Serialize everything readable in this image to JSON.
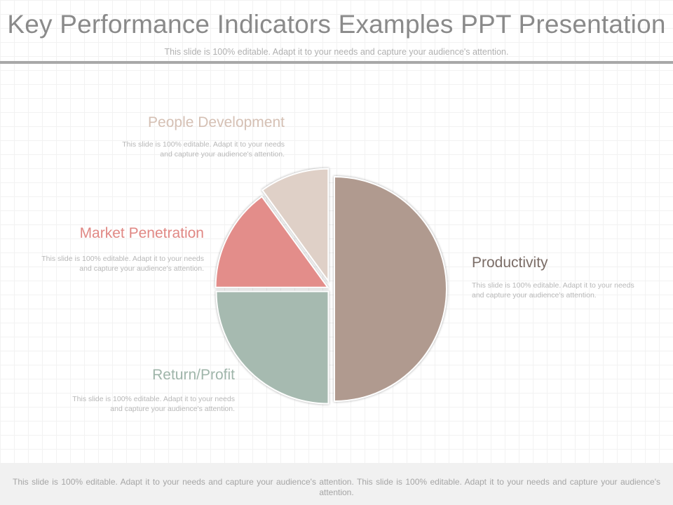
{
  "slide": {
    "title": "Key Performance Indicators Examples PPT Presentation",
    "subtitle": "This slide is 100% editable. Adapt it to your needs and capture your audience's attention.",
    "footer": "This slide is 100% editable. Adapt it to your needs and capture your audience's attention. This slide is 100% editable.  Adapt it to your needs and capture your audience's attention."
  },
  "labels": {
    "people_development": {
      "title": "People Development",
      "desc": "This slide is 100% editable. Adapt it to your needs and capture your audience's attention."
    },
    "market_penetration": {
      "title": "Market Penetration",
      "desc": "This slide is 100% editable. Adapt it to your needs and capture your audience's attention."
    },
    "productivity": {
      "title": "Productivity",
      "desc": "This slide is 100% editable. Adapt it to your needs and capture your audience's attention."
    },
    "return_profit": {
      "title": "Return/Profit",
      "desc": "This slide is 100% editable. Adapt it to your needs and capture your audience's attention."
    }
  },
  "chart_data": {
    "type": "pie",
    "title": "",
    "start_angle_deg": 0,
    "direction": "clockwise",
    "slices": [
      {
        "name": "Productivity",
        "value": 50,
        "color": "#b09a8f"
      },
      {
        "name": "Return/Profit",
        "value": 25,
        "color": "#a6bab0"
      },
      {
        "name": "Market Penetration",
        "value": 15,
        "color": "#e38d8a"
      },
      {
        "name": "People Development",
        "value": 10,
        "color": "#dfd0c7",
        "exploded": true
      }
    ]
  },
  "colors": {
    "people_development": "#d5c0b4",
    "market_penetration": "#e08884",
    "productivity": "#7a6c66",
    "return_profit": "#9fb5aa"
  }
}
